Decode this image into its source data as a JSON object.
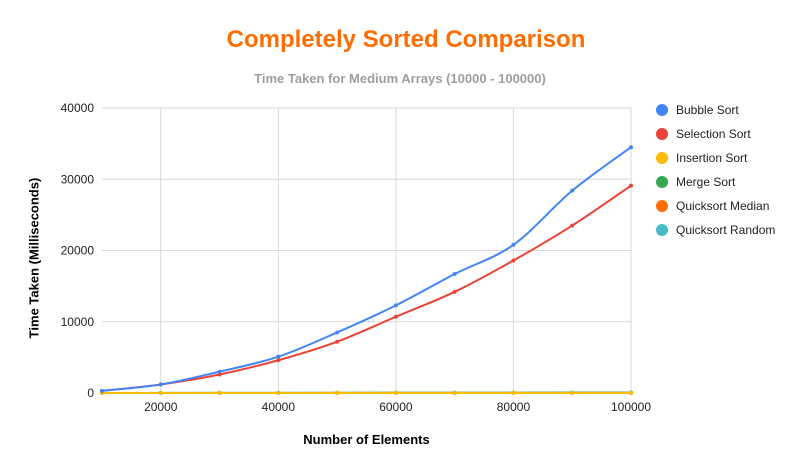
{
  "chart_data": {
    "type": "line",
    "title": "Completely Sorted Comparison",
    "subtitle": "Time Taken for Medium Arrays (10000 - 100000)",
    "xlabel": "Number of Elements",
    "ylabel": "Time Taken (Milliseconds)",
    "xlim": [
      10000,
      100000
    ],
    "ylim": [
      0,
      40000
    ],
    "xticks": [
      20000,
      40000,
      60000,
      80000,
      100000
    ],
    "yticks": [
      0,
      10000,
      20000,
      30000,
      40000
    ],
    "grid": true,
    "legend_position": "right",
    "x": [
      10000,
      20000,
      30000,
      40000,
      50000,
      60000,
      70000,
      80000,
      90000,
      100000
    ],
    "series": [
      {
        "name": "Bubble Sort",
        "color": "#4285f4",
        "values": [
          300,
          1200,
          3000,
          5100,
          8500,
          12300,
          16700,
          20800,
          28400,
          34500
        ]
      },
      {
        "name": "Selection Sort",
        "color": "#ea4335",
        "values": [
          300,
          1200,
          2600,
          4600,
          7200,
          10700,
          14200,
          18600,
          23500,
          29100
        ]
      },
      {
        "name": "Insertion Sort",
        "color": "#fbbc04",
        "values": [
          0,
          0,
          0,
          0,
          0,
          0,
          0,
          0,
          0,
          0
        ]
      },
      {
        "name": "Merge Sort",
        "color": "#34a853",
        "values": [
          5,
          10,
          15,
          20,
          25,
          30,
          35,
          40,
          45,
          50
        ]
      },
      {
        "name": "Quicksort Median",
        "color": "#ff6d01",
        "values": [
          2,
          4,
          6,
          8,
          10,
          12,
          14,
          16,
          18,
          20
        ]
      },
      {
        "name": "Quicksort Random",
        "color": "#46bdc6",
        "values": [
          3,
          6,
          9,
          12,
          15,
          18,
          21,
          24,
          27,
          30
        ]
      }
    ]
  }
}
